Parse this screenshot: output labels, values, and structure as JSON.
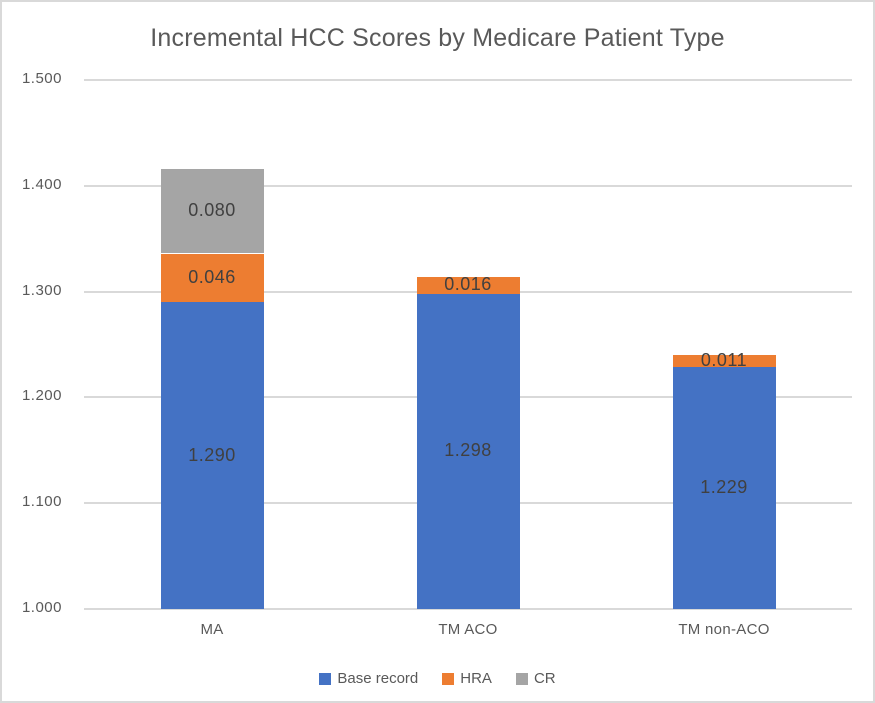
{
  "chart_data": {
    "type": "bar",
    "stacked": true,
    "title": "Incremental HCC Scores by Medicare Patient Type",
    "categories": [
      "MA",
      "TM ACO",
      "TM non-ACO"
    ],
    "series": [
      {
        "name": "Base record",
        "color": "#4472C4",
        "values": [
          1.29,
          1.298,
          1.229
        ]
      },
      {
        "name": "HRA",
        "color": "#ED7D31",
        "values": [
          0.046,
          0.016,
          0.011
        ]
      },
      {
        "name": "CR",
        "color": "#A5A5A5",
        "values": [
          0.08,
          0.0,
          0.0
        ]
      }
    ],
    "totals": [
      1.416,
      1.314,
      1.24
    ],
    "data_labels": {
      "MA": [
        "1.290",
        "0.046",
        "0.080"
      ],
      "TM ACO": [
        "1.298",
        "0.016"
      ],
      "TM non-ACO": [
        "1.229",
        "0.011"
      ]
    },
    "y_axis": {
      "min": 1.0,
      "max": 1.5,
      "step": 0.1,
      "tick_labels": [
        "1.000",
        "1.100",
        "1.200",
        "1.300",
        "1.400",
        "1.500"
      ]
    },
    "xlabel": "",
    "ylabel": "",
    "grid": true,
    "legend_position": "bottom",
    "legend_entries": [
      "Base record",
      "HRA",
      "CR"
    ]
  },
  "style": {
    "gridline_color": "#D9D9D9",
    "frame_border_color": "#D9D9D9",
    "title_color": "#595959",
    "axis_text_color": "#595959",
    "data_label_color": "#404040",
    "background": "#FFFFFF"
  }
}
